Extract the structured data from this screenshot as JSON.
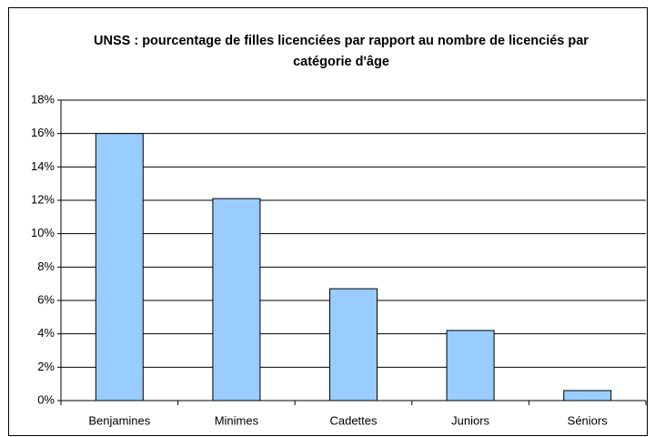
{
  "chart_data": {
    "type": "bar",
    "title": "UNSS : pourcentage de filles licenciées par rapport au nombre de licenciés par catégorie d'âge",
    "categories": [
      "Benjamines",
      "Minimes",
      "Cadettes",
      "Juniors",
      "Séniors"
    ],
    "values": [
      16,
      12.1,
      6.7,
      4.2,
      0.6
    ],
    "color": "#99ccff",
    "ylim": [
      0,
      18
    ],
    "yticks": [
      {
        "value": 0,
        "label": "0%"
      },
      {
        "value": 2,
        "label": "2%"
      },
      {
        "value": 4,
        "label": "4%"
      },
      {
        "value": 6,
        "label": "6%"
      },
      {
        "value": 8,
        "label": "8%"
      },
      {
        "value": 10,
        "label": "10%"
      },
      {
        "value": 12,
        "label": "12%"
      },
      {
        "value": 14,
        "label": "14%"
      },
      {
        "value": 16,
        "label": "16%"
      },
      {
        "value": 18,
        "label": "18%"
      }
    ],
    "grid": true
  }
}
